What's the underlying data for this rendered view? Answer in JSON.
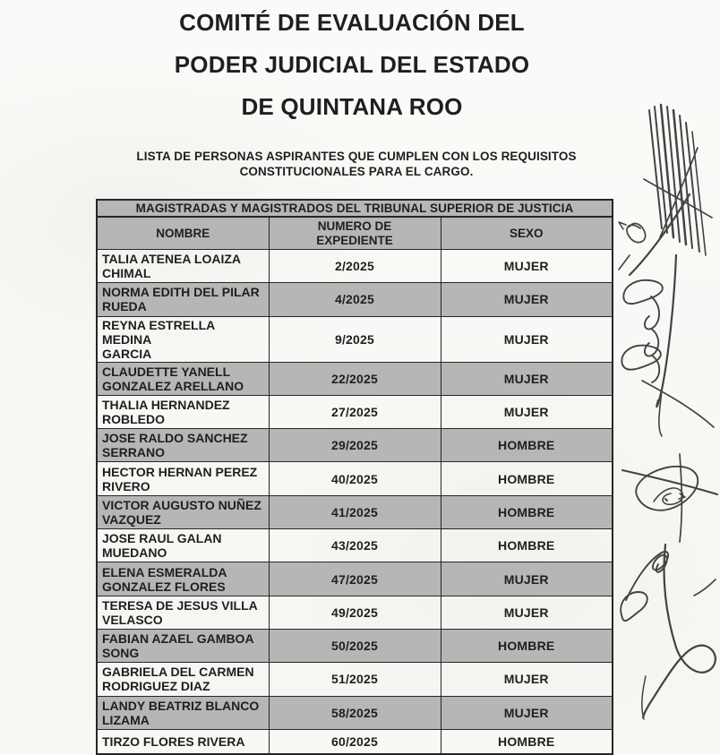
{
  "document": {
    "title_lines": [
      "COMITÉ DE EVALUACIÓN DEL",
      "PODER JUDICIAL DEL ESTADO",
      "DE QUINTANA ROO"
    ],
    "subtitle_lines": [
      "LISTA DE PERSONAS ASPIRANTES QUE CUMPLEN CON LOS REQUISITOS",
      "CONSTITUCIONALES PARA EL CARGO."
    ]
  },
  "table": {
    "banner": "MAGISTRADAS Y MAGISTRADOS DEL TRIBUNAL SUPERIOR DE JUSTICIA",
    "columns": [
      "NOMBRE",
      "NUMERO DE\nEXPEDIENTE",
      "SEXO"
    ],
    "rows": [
      {
        "nombre_lines": [
          "TALIA ATENEA LOAIZA",
          "CHIMAL"
        ],
        "expediente": "2/2025",
        "sexo": "MUJER"
      },
      {
        "nombre_lines": [
          "NORMA EDITH DEL PILAR",
          "RUEDA"
        ],
        "expediente": "4/2025",
        "sexo": "MUJER"
      },
      {
        "nombre_lines": [
          "REYNA ESTRELLA MEDINA",
          "GARCIA"
        ],
        "expediente": "9/2025",
        "sexo": "MUJER"
      },
      {
        "nombre_lines": [
          "CLAUDETTE YANELL",
          "GONZALEZ ARELLANO"
        ],
        "expediente": "22/2025",
        "sexo": "MUJER"
      },
      {
        "nombre_lines": [
          "THALIA HERNANDEZ",
          "ROBLEDO"
        ],
        "expediente": "27/2025",
        "sexo": "MUJER"
      },
      {
        "nombre_lines": [
          "JOSE RALDO SANCHEZ",
          "SERRANO"
        ],
        "expediente": "29/2025",
        "sexo": "HOMBRE"
      },
      {
        "nombre_lines": [
          "HECTOR HERNAN PEREZ",
          "RIVERO"
        ],
        "expediente": "40/2025",
        "sexo": "HOMBRE"
      },
      {
        "nombre_lines": [
          "VICTOR AUGUSTO NUÑEZ",
          "VAZQUEZ"
        ],
        "expediente": "41/2025",
        "sexo": "HOMBRE"
      },
      {
        "nombre_lines": [
          "JOSE RAUL GALAN",
          "MUEDANO"
        ],
        "expediente": "43/2025",
        "sexo": "HOMBRE"
      },
      {
        "nombre_lines": [
          "ELENA ESMERALDA",
          "GONZALEZ FLORES"
        ],
        "expediente": "47/2025",
        "sexo": "MUJER"
      },
      {
        "nombre_lines": [
          "TERESA DE JESUS VILLA",
          "VELASCO"
        ],
        "expediente": "49/2025",
        "sexo": "MUJER"
      },
      {
        "nombre_lines": [
          "FABIAN AZAEL GAMBOA",
          "SONG"
        ],
        "expediente": "50/2025",
        "sexo": "HOMBRE"
      },
      {
        "nombre_lines": [
          "GABRIELA DEL CARMEN",
          "RODRIGUEZ DIAZ"
        ],
        "expediente": "51/2025",
        "sexo": "MUJER"
      },
      {
        "nombre_lines": [
          "LANDY BEATRIZ BLANCO",
          "LIZAMA"
        ],
        "expediente": "58/2025",
        "sexo": "MUJER"
      },
      {
        "nombre_lines": [
          "TIRZO FLORES RIVERA"
        ],
        "expediente": "60/2025",
        "sexo": "HOMBRE"
      }
    ]
  },
  "marginalia": {
    "signatures": [
      "illegible-ink-signature-1",
      "illegible-ink-signature-2",
      "illegible-ink-signature-3",
      "illegible-ink-signature-4"
    ]
  },
  "colors": {
    "paper": "#f9f8f5",
    "shaded_row": "#b6b6b6",
    "table_border": "#262626",
    "ink_text": "#1f1f1f",
    "signature_ink": "#434343"
  }
}
